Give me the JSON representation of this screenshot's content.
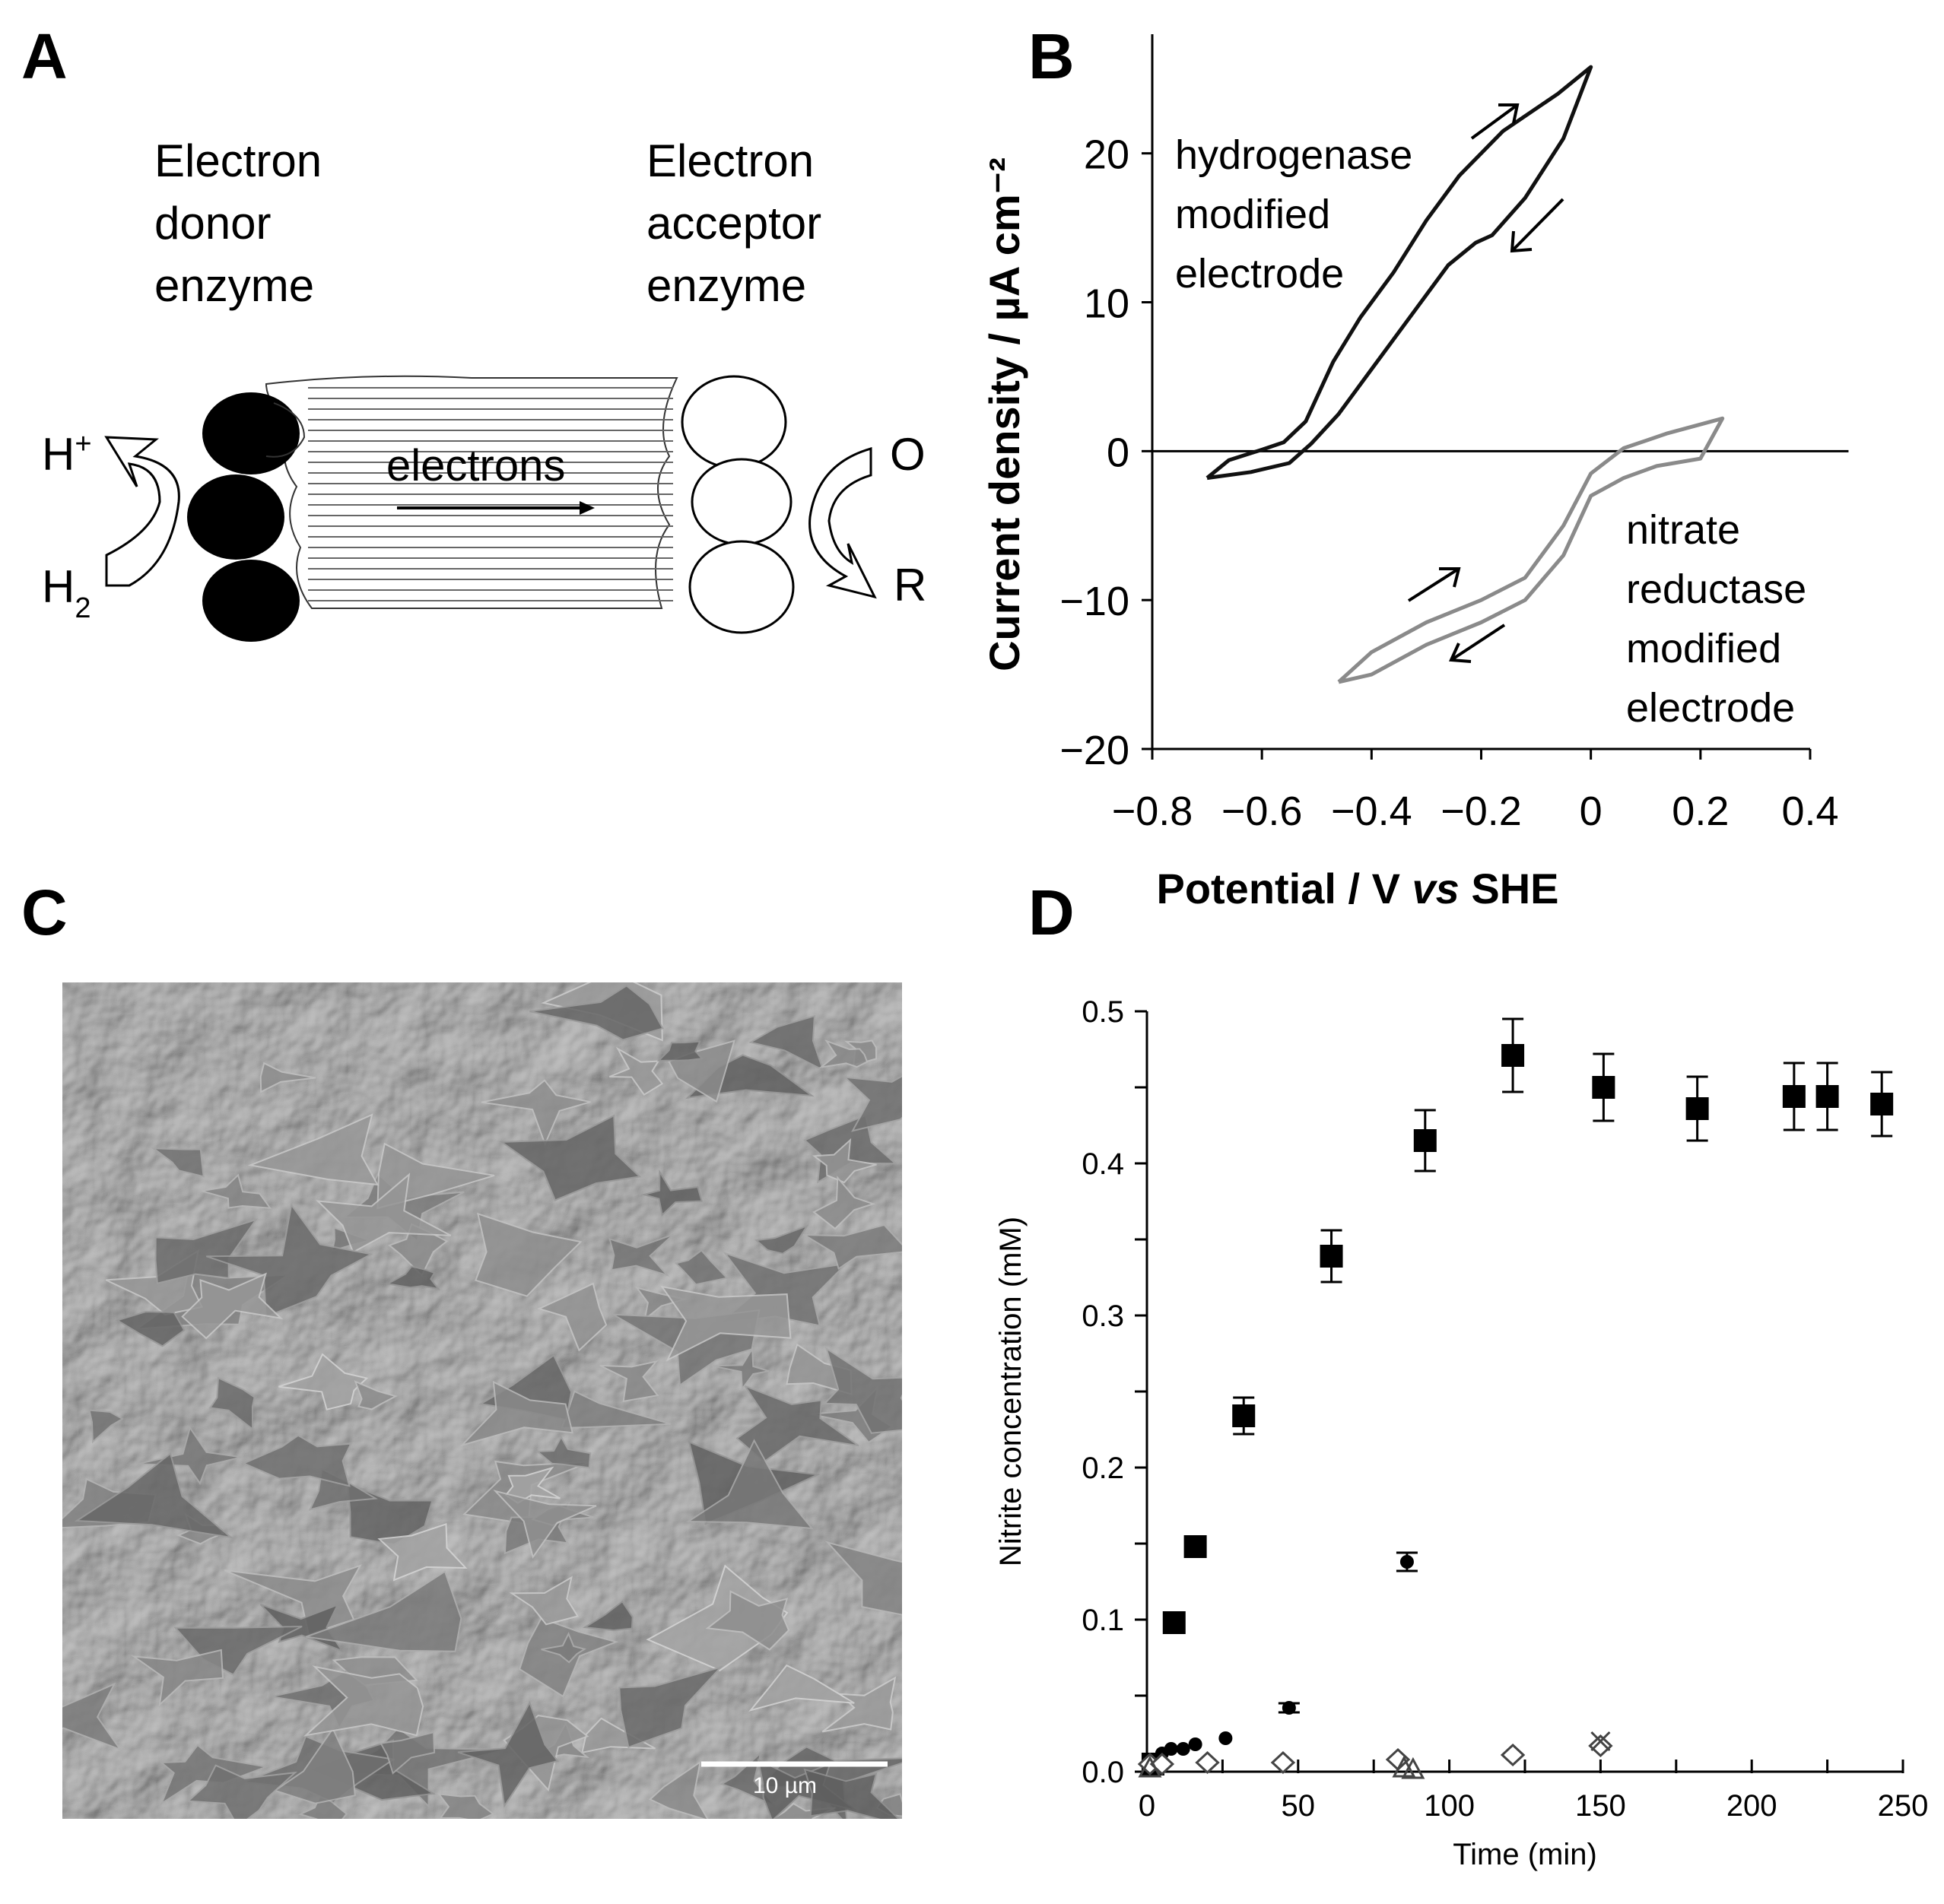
{
  "panels": {
    "A": {
      "letter": "A",
      "donor_label": [
        "Electron",
        "donor",
        "enzyme"
      ],
      "acceptor_label": [
        "Electron",
        "acceptor",
        "enzyme"
      ],
      "electrons_label": "electrons",
      "h_plus": "H",
      "h_plus_sup": "+",
      "h2": "H",
      "h2_sub": "2",
      "ox": "O",
      "red": "R"
    },
    "B": {
      "letter": "B",
      "label_hydrogenase": [
        "hydrogenase",
        "modified",
        "electrode"
      ],
      "label_nitrate": [
        "nitrate",
        "reductase",
        "modified",
        "electrode"
      ]
    },
    "C": {
      "letter": "C",
      "scale_bar_label": "10 µm"
    },
    "D": {
      "letter": "D"
    }
  },
  "chart_data": [
    {
      "type": "line",
      "panel": "B",
      "xlabel": "Potential / V vs SHE",
      "xlabel_parts": [
        "Potential / V ",
        "vs",
        " SHE"
      ],
      "ylabel": "Current density / µA cm⁻²",
      "xlim": [
        -0.8,
        0.4
      ],
      "ylim": [
        -20,
        25
      ],
      "xticks": [
        -0.8,
        -0.6,
        -0.4,
        -0.2,
        0,
        0.2,
        0.4
      ],
      "xtick_labels": [
        "−0.8",
        "−0.6",
        "−0.4",
        "−0.2",
        "0",
        "0.2",
        "0.4"
      ],
      "yticks": [
        -20,
        -10,
        0,
        10,
        20
      ],
      "ytick_labels": [
        "−20",
        "−10",
        "0",
        "10",
        "20"
      ],
      "series": [
        {
          "color": "#111111",
          "forward": [
            [
              -0.7,
              -1.8
            ],
            [
              -0.66,
              -0.6
            ],
            [
              -0.6,
              0.1
            ],
            [
              -0.56,
              0.6
            ],
            [
              -0.52,
              2
            ],
            [
              -0.47,
              6
            ],
            [
              -0.42,
              9
            ],
            [
              -0.36,
              12
            ],
            [
              -0.3,
              15.5
            ],
            [
              -0.24,
              18.5
            ],
            [
              -0.16,
              21.5
            ],
            [
              -0.06,
              24
            ],
            [
              0.0,
              25.8
            ]
          ],
          "reverse": [
            [
              0.0,
              25.8
            ],
            [
              -0.05,
              21
            ],
            [
              -0.12,
              17
            ],
            [
              -0.18,
              14.5
            ],
            [
              -0.21,
              14
            ],
            [
              -0.26,
              12.5
            ],
            [
              -0.32,
              9.5
            ],
            [
              -0.4,
              5.5
            ],
            [
              -0.46,
              2.5
            ],
            [
              -0.51,
              0.5
            ],
            [
              -0.55,
              -0.8
            ],
            [
              -0.62,
              -1.4
            ],
            [
              -0.7,
              -1.8
            ]
          ]
        },
        {
          "color": "#8a8a8a",
          "forward": [
            [
              -0.46,
              -15.5
            ],
            [
              -0.4,
              -13.5
            ],
            [
              -0.3,
              -11.5
            ],
            [
              -0.2,
              -10
            ],
            [
              -0.12,
              -8.5
            ],
            [
              -0.05,
              -5
            ],
            [
              0.0,
              -1.5
            ],
            [
              0.06,
              0.2
            ],
            [
              0.14,
              1.2
            ],
            [
              0.24,
              2.2
            ]
          ],
          "reverse": [
            [
              0.24,
              2.2
            ],
            [
              0.2,
              -0.5
            ],
            [
              0.12,
              -1
            ],
            [
              0.06,
              -1.8
            ],
            [
              0.0,
              -3
            ],
            [
              -0.05,
              -7
            ],
            [
              -0.12,
              -10
            ],
            [
              -0.2,
              -11.5
            ],
            [
              -0.3,
              -13
            ],
            [
              -0.4,
              -15
            ],
            [
              -0.46,
              -15.5
            ]
          ]
        }
      ]
    },
    {
      "type": "scatter",
      "panel": "D",
      "xlabel": "Time (min)",
      "ylabel": "Nitrite concentration (mM)",
      "xlim": [
        0,
        250
      ],
      "ylim": [
        0,
        0.5
      ],
      "xticks": [
        0,
        50,
        100,
        150,
        200,
        250
      ],
      "yticks": [
        0.0,
        0.1,
        0.2,
        0.3,
        0.4,
        0.5
      ],
      "ytick_labels": [
        "0.0",
        "0.1",
        "0.2",
        "0.3",
        "0.4",
        "0.5"
      ],
      "series": [
        {
          "marker": "square",
          "points": [
            [
              2,
              0.005,
              0
            ],
            [
              9,
              0.098,
              0
            ],
            [
              16,
              0.148,
              0
            ],
            [
              32,
              0.234,
              0.012
            ],
            [
              61,
              0.339,
              0.017
            ],
            [
              92,
              0.415,
              0.02
            ],
            [
              121,
              0.471,
              0.024
            ],
            [
              151,
              0.45,
              0.022
            ],
            [
              182,
              0.436,
              0.021
            ],
            [
              214,
              0.444,
              0.022
            ],
            [
              225,
              0.444,
              0.022
            ],
            [
              243,
              0.439,
              0.021
            ]
          ]
        },
        {
          "marker": "circle",
          "points": [
            [
              2,
              0.008,
              0
            ],
            [
              5,
              0.012,
              0
            ],
            [
              8,
              0.015,
              0
            ],
            [
              12,
              0.015,
              0
            ],
            [
              16,
              0.018,
              0
            ],
            [
              26,
              0.022,
              0
            ],
            [
              47,
              0.042,
              0.003
            ],
            [
              86,
              0.138,
              0.006
            ]
          ]
        },
        {
          "marker": "diamond",
          "points": [
            [
              1,
              0.005,
              0
            ],
            [
              5,
              0.005,
              0
            ],
            [
              20,
              0.006,
              0
            ],
            [
              45,
              0.006,
              0
            ],
            [
              83,
              0.008,
              0
            ],
            [
              121,
              0.011,
              0
            ],
            [
              150,
              0.017,
              0
            ]
          ]
        },
        {
          "marker": "triangle",
          "points": [
            [
              1,
              0.002,
              0
            ],
            [
              85,
              0.002,
              0
            ],
            [
              88,
              0.001,
              0
            ]
          ]
        },
        {
          "marker": "cross",
          "points": [
            [
              150,
              0.02,
              0
            ]
          ]
        }
      ]
    }
  ]
}
